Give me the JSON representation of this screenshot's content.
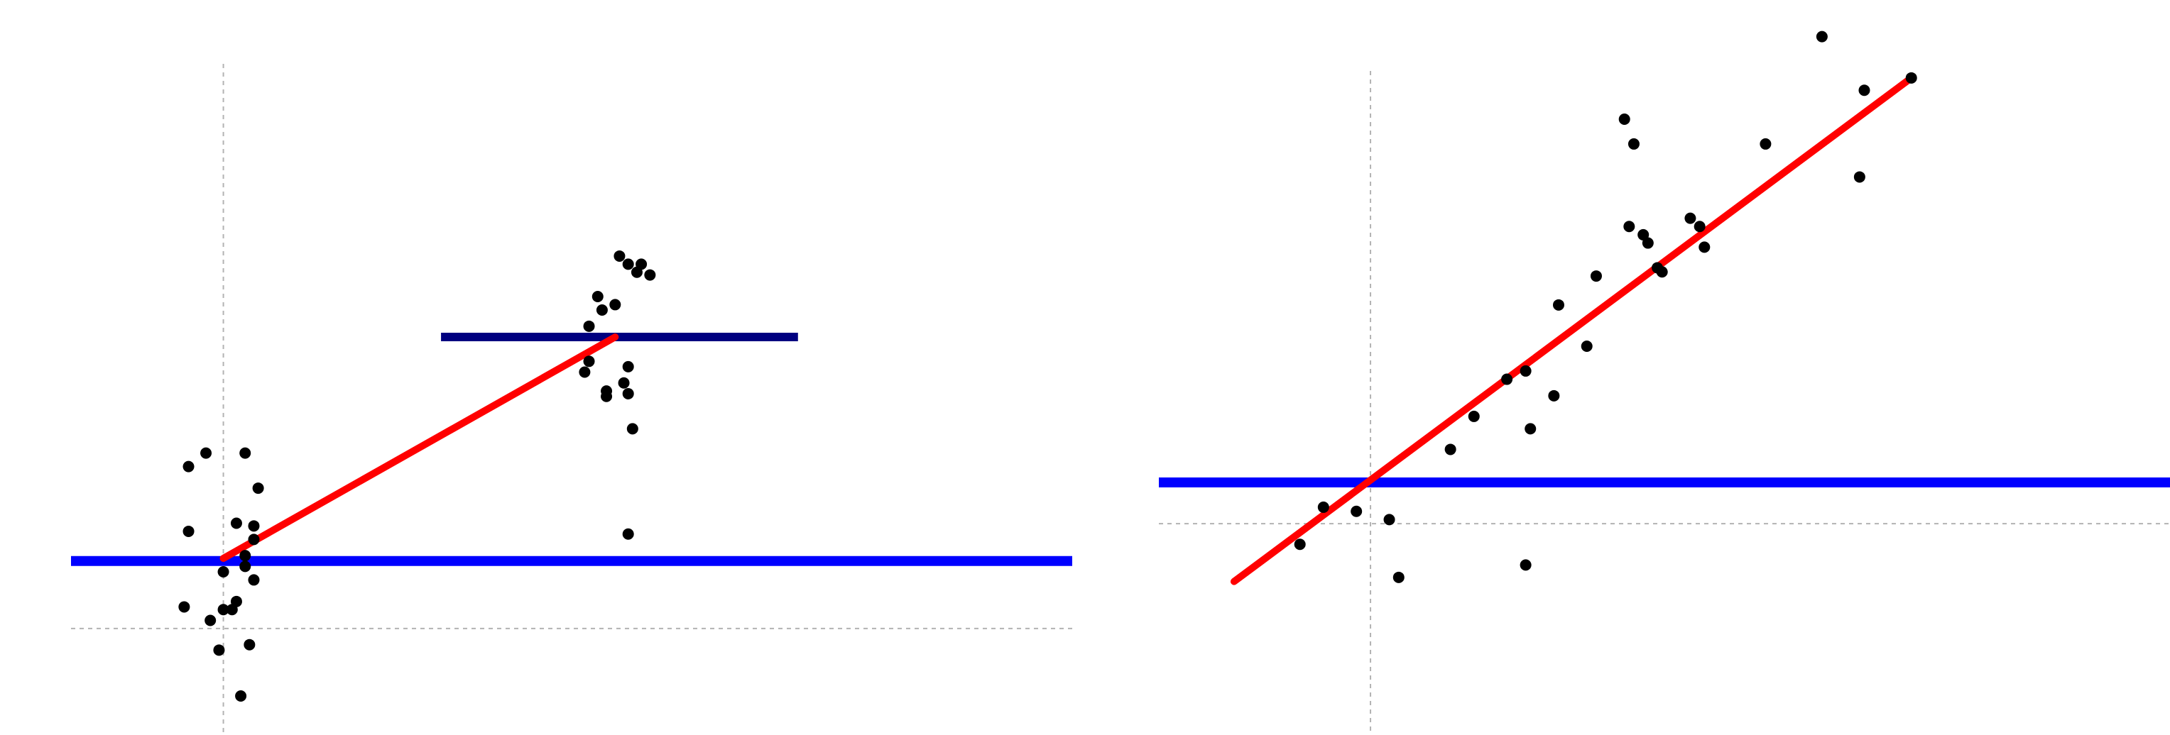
{
  "colors": {
    "background": "#ffffff",
    "points": "#000000",
    "fit_line": "#ff0000",
    "mean_line": "#0000ff",
    "group_mean_line": "#000080",
    "axis_reference": "#b3b3b3"
  },
  "chart_data": [
    {
      "type": "scatter",
      "title": "",
      "xlabel": "",
      "ylabel": "",
      "grid": false,
      "xlim": [
        -0.35,
        1.95
      ],
      "ylim": [
        -0.3,
        2.25
      ],
      "reference_lines": {
        "x": 0,
        "y": 0
      },
      "series": [
        {
          "type": "scatter",
          "points": [
            [
              -0.08,
              0.6
            ],
            [
              -0.04,
              0.65
            ],
            [
              0.05,
              0.65
            ],
            [
              0.08,
              0.52
            ],
            [
              -0.08,
              0.36
            ],
            [
              0.03,
              0.39
            ],
            [
              0.07,
              0.38
            ],
            [
              0.07,
              0.33
            ],
            [
              0.05,
              0.27
            ],
            [
              0.05,
              0.23
            ],
            [
              0.0,
              0.21
            ],
            [
              0.07,
              0.18
            ],
            [
              0.03,
              0.1
            ],
            [
              -0.09,
              0.08
            ],
            [
              -0.03,
              0.03
            ],
            [
              0.0,
              0.07
            ],
            [
              0.02,
              0.07
            ],
            [
              -0.01,
              -0.08
            ],
            [
              0.06,
              -0.06
            ],
            [
              0.04,
              -0.25
            ],
            [
              0.91,
              1.38
            ],
            [
              0.93,
              1.35
            ],
            [
              0.95,
              1.32
            ],
            [
              0.96,
              1.35
            ],
            [
              0.98,
              1.31
            ],
            [
              0.86,
              1.23
            ],
            [
              0.87,
              1.18
            ],
            [
              0.9,
              1.2
            ],
            [
              0.84,
              1.12
            ],
            [
              0.93,
              0.97
            ],
            [
              0.84,
              0.99
            ],
            [
              0.92,
              0.91
            ],
            [
              0.93,
              0.87
            ],
            [
              0.88,
              0.86
            ],
            [
              0.83,
              0.95
            ],
            [
              0.88,
              0.88
            ],
            [
              0.94,
              0.74
            ],
            [
              0.93,
              0.35
            ]
          ]
        },
        {
          "type": "line",
          "name": "",
          "points": [
            [
              0.0,
              0.26
            ],
            [
              0.9,
              1.08
            ]
          ]
        },
        {
          "type": "hline",
          "name": "",
          "y": 0.25,
          "x_range": [
            -0.35,
            1.95
          ]
        },
        {
          "type": "hline",
          "name": "",
          "y": 1.08,
          "x_range": [
            0.5,
            1.32
          ]
        }
      ]
    },
    {
      "type": "scatter",
      "title": "",
      "xlabel": "",
      "ylabel": "",
      "grid": false,
      "xlim": [
        -0.45,
        1.7
      ],
      "ylim": [
        -0.45,
        1.2
      ],
      "reference_lines": {
        "x": 0,
        "y": 0
      },
      "series": [
        {
          "type": "scatter",
          "points": [
            [
              -0.15,
              -0.05
            ],
            [
              -0.03,
              0.03
            ],
            [
              0.04,
              0.01
            ],
            [
              -0.1,
              0.04
            ],
            [
              0.06,
              -0.13
            ],
            [
              0.17,
              0.18
            ],
            [
              0.22,
              0.26
            ],
            [
              0.29,
              0.35
            ],
            [
              0.34,
              0.23
            ],
            [
              0.39,
              0.31
            ],
            [
              0.33,
              0.37
            ],
            [
              0.4,
              0.53
            ],
            [
              0.46,
              0.43
            ],
            [
              0.48,
              0.6
            ],
            [
              0.55,
              0.72
            ],
            [
              0.54,
              0.98
            ],
            [
              0.56,
              0.92
            ],
            [
              0.59,
              0.68
            ],
            [
              0.58,
              0.7
            ],
            [
              0.61,
              0.62
            ],
            [
              0.62,
              0.61
            ],
            [
              0.68,
              0.74
            ],
            [
              0.7,
              0.72
            ],
            [
              0.71,
              0.67
            ],
            [
              0.84,
              0.92
            ],
            [
              0.96,
              1.18
            ],
            [
              1.05,
              1.05
            ],
            [
              1.04,
              0.84
            ],
            [
              1.15,
              1.08
            ],
            [
              0.33,
              -0.1
            ]
          ]
        },
        {
          "type": "line",
          "name": "",
          "points": [
            [
              -0.29,
              -0.14
            ],
            [
              1.15,
              1.08
            ]
          ]
        },
        {
          "type": "hline",
          "name": "",
          "y": 0.1,
          "x_range": [
            -0.45,
            1.7
          ]
        }
      ]
    }
  ]
}
